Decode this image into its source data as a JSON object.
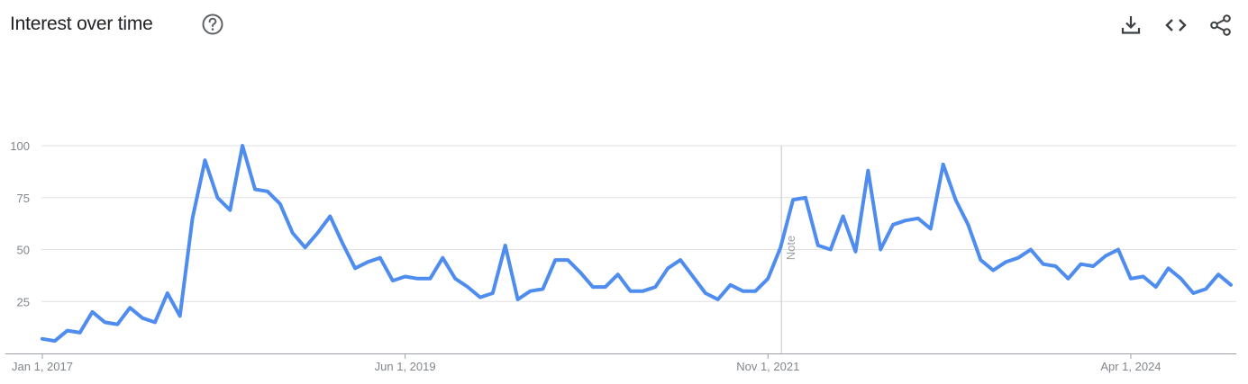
{
  "header": {
    "title": "Interest over time",
    "help_icon": "help-circle-icon",
    "actions": [
      {
        "name": "download-button",
        "icon": "download-icon"
      },
      {
        "name": "embed-button",
        "icon": "code-icon"
      },
      {
        "name": "share-button",
        "icon": "share-icon"
      }
    ]
  },
  "chart_data": {
    "type": "line",
    "title": "",
    "xlabel": "",
    "ylabel": "",
    "ylim": [
      0,
      100
    ],
    "yticks": [
      25,
      50,
      75,
      100
    ],
    "xticks": [
      {
        "label": "Jan 1, 2017",
        "index": 0
      },
      {
        "label": "Jun 1, 2019",
        "index": 29
      },
      {
        "label": "Nov 1, 2021",
        "index": 58
      },
      {
        "label": "Apr 1, 2024",
        "index": 87
      }
    ],
    "grid": true,
    "line_color": "#4e8cef",
    "annotation": {
      "label": "Note",
      "index": 59
    },
    "x_start": "Jan 1, 2017",
    "x_interval": "month",
    "series": [
      {
        "values": [
          7,
          6,
          11,
          10,
          20,
          15,
          14,
          22,
          17,
          15,
          29,
          18,
          65,
          93,
          75,
          69,
          100,
          79,
          78,
          72,
          58,
          51,
          58,
          66,
          53,
          41,
          44,
          46,
          35,
          37,
          36,
          36,
          46,
          36,
          32,
          27,
          29,
          52,
          26,
          30,
          31,
          45,
          45,
          39,
          32,
          32,
          38,
          30,
          30,
          32,
          41,
          45,
          37,
          29,
          26,
          33,
          30,
          30,
          36,
          51,
          74,
          75,
          52,
          50,
          66,
          49,
          88,
          50,
          62,
          64,
          65,
          60,
          91,
          74,
          62,
          45,
          40,
          44,
          46,
          50,
          43,
          42,
          36,
          43,
          42,
          47,
          50,
          36,
          37,
          32,
          41,
          36,
          29,
          31,
          38,
          33
        ]
      }
    ]
  }
}
